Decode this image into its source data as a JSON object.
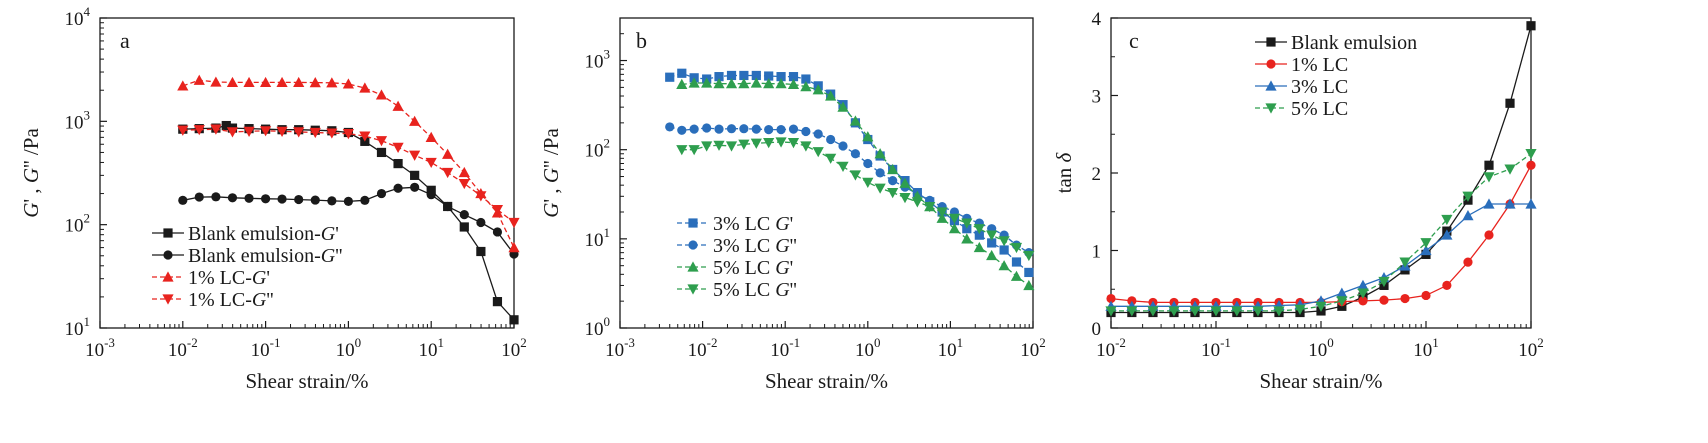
{
  "chart_data": [
    {
      "type": "line",
      "panel_label": "a",
      "xscale": "log",
      "yscale": "log",
      "xlim": [
        0.001,
        100
      ],
      "ylim": [
        10,
        10000
      ],
      "xlabel": "Shear strain/%",
      "ylabel": "G' , G'' /Pa",
      "x_ticks": [
        {
          "base": "10",
          "exp": "-3"
        },
        {
          "base": "10",
          "exp": "-2"
        },
        {
          "base": "10",
          "exp": "-1"
        },
        {
          "base": "10",
          "exp": "0"
        },
        {
          "base": "10",
          "exp": "1"
        },
        {
          "base": "10",
          "exp": "2"
        }
      ],
      "y_ticks": [
        {
          "base": "10",
          "exp": "1"
        },
        {
          "base": "10",
          "exp": "2"
        },
        {
          "base": "10",
          "exp": "3"
        },
        {
          "base": "10",
          "exp": "4"
        }
      ],
      "legend_position": "bottom-left",
      "series": [
        {
          "name": "Blank emulsion-G'",
          "color": "#1a1a1a",
          "marker": "square",
          "dashed": false,
          "x": [
            0.01,
            0.0158,
            0.0251,
            0.0335,
            0.0398,
            0.0631,
            0.1,
            0.158,
            0.251,
            0.398,
            0.631,
            1.0,
            1.58,
            2.51,
            3.98,
            6.31,
            10,
            15.8,
            25.1,
            39.8,
            63.1,
            100
          ],
          "y": [
            840,
            850,
            860,
            910,
            860,
            850,
            840,
            830,
            830,
            820,
            810,
            780,
            640,
            500,
            390,
            300,
            215,
            150,
            95,
            55,
            18,
            12
          ]
        },
        {
          "name": "Blank emulsion-G''",
          "color": "#1a1a1a",
          "marker": "circle",
          "dashed": false,
          "x": [
            0.01,
            0.0158,
            0.0251,
            0.0398,
            0.0631,
            0.1,
            0.158,
            0.251,
            0.398,
            0.631,
            1.0,
            1.58,
            2.51,
            3.98,
            6.31,
            10,
            15.8,
            25.1,
            39.8,
            63.1,
            100
          ],
          "y": [
            172,
            185,
            186,
            182,
            180,
            178,
            177,
            175,
            173,
            170,
            168,
            172,
            200,
            225,
            230,
            195,
            150,
            125,
            105,
            85,
            52
          ]
        },
        {
          "name": "1% LC-G'",
          "color": "#e8231e",
          "marker": "triangle-up",
          "dashed": true,
          "x": [
            0.01,
            0.0158,
            0.0251,
            0.0398,
            0.0631,
            0.1,
            0.158,
            0.251,
            0.398,
            0.631,
            1.0,
            1.58,
            2.51,
            3.98,
            6.31,
            10,
            15.8,
            25.1,
            39.8,
            63.1,
            100
          ],
          "y": [
            2200,
            2500,
            2400,
            2380,
            2380,
            2380,
            2380,
            2380,
            2370,
            2360,
            2300,
            2100,
            1800,
            1400,
            1000,
            700,
            480,
            320,
            200,
            130,
            60
          ]
        },
        {
          "name": "1% LC-G''",
          "color": "#e8231e",
          "marker": "triangle-down",
          "dashed": true,
          "x": [
            0.01,
            0.0158,
            0.0251,
            0.0398,
            0.0631,
            0.1,
            0.158,
            0.251,
            0.398,
            0.631,
            1.0,
            1.58,
            2.51,
            3.98,
            6.31,
            10,
            15.8,
            25.1,
            39.8,
            63.1,
            100
          ],
          "y": [
            820,
            830,
            840,
            790,
            800,
            810,
            800,
            790,
            780,
            770,
            760,
            720,
            650,
            560,
            470,
            400,
            320,
            250,
            190,
            140,
            105
          ]
        }
      ]
    },
    {
      "type": "line",
      "panel_label": "b",
      "xscale": "log",
      "yscale": "log",
      "xlim": [
        0.001,
        100
      ],
      "ylim": [
        1,
        3000
      ],
      "xlabel": "Shear strain/%",
      "ylabel": "G' , G'' /Pa",
      "x_ticks": [
        {
          "base": "10",
          "exp": "-3"
        },
        {
          "base": "10",
          "exp": "-2"
        },
        {
          "base": "10",
          "exp": "-1"
        },
        {
          "base": "10",
          "exp": "0"
        },
        {
          "base": "10",
          "exp": "1"
        },
        {
          "base": "10",
          "exp": "2"
        }
      ],
      "y_ticks": [
        {
          "base": "10",
          "exp": "0"
        },
        {
          "base": "10",
          "exp": "1"
        },
        {
          "base": "10",
          "exp": "2"
        },
        {
          "base": "10",
          "exp": "3"
        }
      ],
      "legend_position": "bottom-left",
      "series": [
        {
          "name": "3% LC G'",
          "color": "#2a6ebb",
          "marker": "square",
          "dashed": true,
          "x": [
            0.004,
            0.0056,
            0.0079,
            0.0112,
            0.0158,
            0.0224,
            0.0316,
            0.0447,
            0.0631,
            0.0891,
            0.126,
            0.178,
            0.251,
            0.355,
            0.501,
            0.708,
            1.0,
            1.41,
            2.0,
            2.82,
            3.98,
            5.62,
            7.94,
            11.2,
            15.8,
            22.4,
            31.6,
            44.7,
            63.1,
            89.1
          ],
          "y": [
            650,
            720,
            640,
            620,
            660,
            680,
            680,
            680,
            670,
            660,
            660,
            620,
            520,
            420,
            320,
            200,
            130,
            85,
            60,
            45,
            33,
            26,
            20,
            16,
            13,
            11,
            9,
            7.5,
            5.5,
            4.2
          ]
        },
        {
          "name": "3% LC G''",
          "color": "#2a6ebb",
          "marker": "circle",
          "dashed": true,
          "x": [
            0.004,
            0.0056,
            0.0079,
            0.0112,
            0.0158,
            0.0224,
            0.0316,
            0.0447,
            0.0631,
            0.0891,
            0.126,
            0.178,
            0.251,
            0.355,
            0.501,
            0.708,
            1.0,
            1.41,
            2.0,
            2.82,
            3.98,
            5.62,
            7.94,
            11.2,
            15.8,
            22.4,
            31.6,
            44.7,
            63.1,
            89.1
          ],
          "y": [
            180,
            165,
            170,
            175,
            170,
            172,
            172,
            170,
            168,
            168,
            170,
            160,
            150,
            130,
            110,
            90,
            70,
            55,
            45,
            38,
            32,
            27,
            23,
            20,
            17,
            15,
            13,
            11,
            8.5,
            7
          ]
        },
        {
          "name": "5% LC G'",
          "color": "#2e9e4e",
          "marker": "triangle-up",
          "dashed": true,
          "x": [
            0.0056,
            0.0079,
            0.0112,
            0.0158,
            0.0224,
            0.0316,
            0.0447,
            0.0631,
            0.0891,
            0.126,
            0.178,
            0.251,
            0.355,
            0.501,
            0.708,
            1.0,
            1.41,
            2.0,
            2.82,
            3.98,
            5.62,
            7.94,
            11.2,
            15.8,
            22.4,
            31.6,
            44.7,
            63.1,
            89.1
          ],
          "y": [
            540,
            560,
            560,
            550,
            550,
            550,
            560,
            550,
            550,
            540,
            510,
            470,
            400,
            300,
            210,
            140,
            90,
            60,
            42,
            30,
            23,
            17,
            13,
            10,
            8,
            6.5,
            5,
            3.8,
            3
          ]
        },
        {
          "name": "5% LC G''",
          "color": "#2e9e4e",
          "marker": "triangle-down",
          "dashed": true,
          "x": [
            0.0056,
            0.0079,
            0.0112,
            0.0158,
            0.0224,
            0.0316,
            0.0447,
            0.0631,
            0.0891,
            0.126,
            0.178,
            0.251,
            0.355,
            0.501,
            0.708,
            1.0,
            1.41,
            2.0,
            2.82,
            3.98,
            5.62,
            7.94,
            11.2,
            15.8,
            22.4,
            31.6,
            44.7,
            63.1,
            89.1
          ],
          "y": [
            100,
            100,
            110,
            112,
            110,
            115,
            118,
            120,
            122,
            120,
            110,
            95,
            80,
            65,
            52,
            43,
            37,
            33,
            29,
            26,
            23,
            20,
            17,
            15,
            13,
            11,
            9.5,
            8,
            6.5
          ]
        }
      ]
    },
    {
      "type": "line",
      "panel_label": "c",
      "xscale": "log",
      "yscale": "linear",
      "xlim": [
        0.01,
        100
      ],
      "ylim": [
        0,
        4
      ],
      "xlabel": "Shear strain/%",
      "ylabel": "tan δ",
      "x_ticks": [
        {
          "base": "10",
          "exp": "-2"
        },
        {
          "base": "10",
          "exp": "-1"
        },
        {
          "base": "10",
          "exp": "0"
        },
        {
          "base": "10",
          "exp": "1"
        },
        {
          "base": "10",
          "exp": "2"
        }
      ],
      "y_ticks": [
        "0",
        "1",
        "2",
        "3",
        "4"
      ],
      "legend_position": "top-center",
      "series": [
        {
          "name": "Blank emulsion",
          "color": "#1a1a1a",
          "marker": "square",
          "dashed": false,
          "x": [
            0.01,
            0.0158,
            0.0251,
            0.0398,
            0.0631,
            0.1,
            0.158,
            0.251,
            0.398,
            0.631,
            1.0,
            1.58,
            2.51,
            3.98,
            6.31,
            10,
            15.8,
            25.1,
            39.8,
            63.1,
            100
          ],
          "y": [
            0.2,
            0.2,
            0.2,
            0.2,
            0.2,
            0.2,
            0.2,
            0.2,
            0.2,
            0.2,
            0.22,
            0.28,
            0.4,
            0.55,
            0.75,
            0.95,
            1.25,
            1.65,
            2.1,
            2.9,
            3.9
          ]
        },
        {
          "name": "1% LC",
          "color": "#e8231e",
          "marker": "circle",
          "dashed": false,
          "x": [
            0.01,
            0.0158,
            0.0251,
            0.0398,
            0.0631,
            0.1,
            0.158,
            0.251,
            0.398,
            0.631,
            1.0,
            1.58,
            2.51,
            3.98,
            6.31,
            10,
            15.8,
            25.1,
            39.8,
            63.1,
            100
          ],
          "y": [
            0.38,
            0.35,
            0.33,
            0.33,
            0.33,
            0.33,
            0.33,
            0.33,
            0.33,
            0.33,
            0.33,
            0.34,
            0.35,
            0.36,
            0.38,
            0.42,
            0.55,
            0.85,
            1.2,
            1.6,
            2.1
          ]
        },
        {
          "name": "3% LC",
          "color": "#2a6ebb",
          "marker": "triangle-up",
          "dashed": false,
          "x": [
            0.01,
            0.0158,
            0.0251,
            0.0398,
            0.0631,
            0.1,
            0.158,
            0.251,
            0.398,
            0.631,
            1.0,
            1.58,
            2.51,
            3.98,
            6.31,
            10,
            15.8,
            25.1,
            39.8,
            63.1,
            100
          ],
          "y": [
            0.28,
            0.28,
            0.28,
            0.28,
            0.28,
            0.28,
            0.28,
            0.28,
            0.29,
            0.3,
            0.35,
            0.45,
            0.55,
            0.65,
            0.8,
            1.0,
            1.2,
            1.45,
            1.6,
            1.6,
            1.6
          ]
        },
        {
          "name": "5% LC",
          "color": "#2e9e4e",
          "marker": "triangle-down",
          "dashed": true,
          "x": [
            0.01,
            0.0158,
            0.0251,
            0.0398,
            0.0631,
            0.1,
            0.158,
            0.251,
            0.398,
            0.631,
            1.0,
            1.58,
            2.51,
            3.98,
            6.31,
            10,
            15.8,
            25.1,
            39.8,
            63.1,
            100
          ],
          "y": [
            0.22,
            0.22,
            0.22,
            0.22,
            0.22,
            0.22,
            0.22,
            0.22,
            0.22,
            0.24,
            0.28,
            0.35,
            0.45,
            0.6,
            0.85,
            1.1,
            1.4,
            1.7,
            1.95,
            2.05,
            2.25
          ]
        }
      ]
    }
  ]
}
